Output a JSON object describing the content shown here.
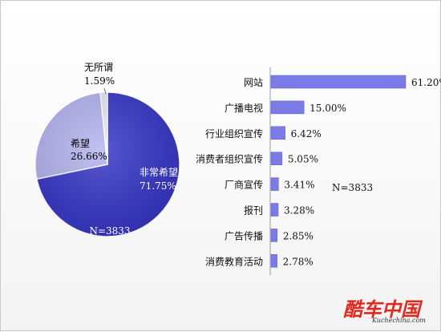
{
  "chart_data": [
    {
      "type": "pie",
      "slices": [
        {
          "name": "非常希望",
          "value": 71.75,
          "label": "71.75%",
          "color": "#3535c8"
        },
        {
          "name": "希望",
          "value": 26.66,
          "label": "26.66%",
          "color": "#b3b3f0"
        },
        {
          "name": "无所谓",
          "value": 1.59,
          "label": "1.59%",
          "color": "#e8e8f4"
        }
      ],
      "annotation": "N=3833"
    },
    {
      "type": "bar",
      "orientation": "horizontal",
      "categories": [
        "网站",
        "广播电视",
        "行业组织宣传",
        "消费者组织宣传",
        "厂商宣传",
        "报刊",
        "广告传播",
        "消费教育活动"
      ],
      "values": [
        61.2,
        15.0,
        6.42,
        5.05,
        3.41,
        3.28,
        2.85,
        2.78
      ],
      "labels": [
        "61.20%",
        "15.00%",
        "6.42%",
        "5.05%",
        "3.41%",
        "3.28%",
        "2.85%",
        "2.78%"
      ],
      "xlim": [
        0,
        70
      ],
      "bar_color": "#7b7be8",
      "annotation": "N=3833"
    }
  ],
  "watermark": {
    "brand": "酷车中国",
    "url": "Kuchechina.com"
  }
}
